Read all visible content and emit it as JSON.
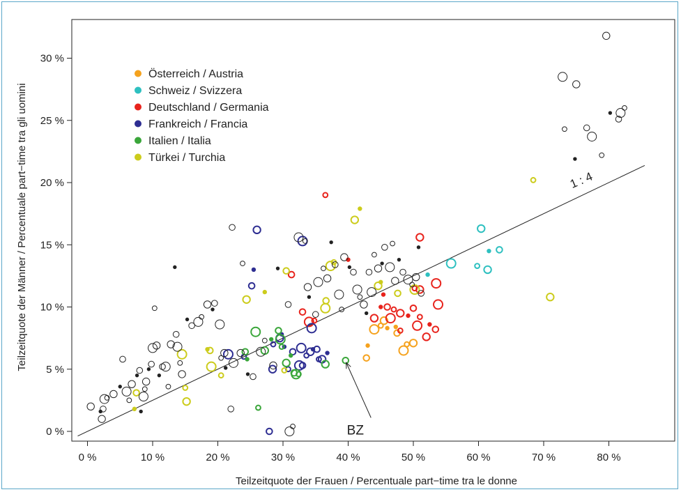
{
  "chart_data": {
    "type": "scatter",
    "xlabel": "Teilzeitquote der Frauen / Percentuale part−time tra le donne",
    "ylabel": "Teilzeitquote der Männer / Percentuale part−time tra gli uomini",
    "xlim": [
      -1.5,
      85.5
    ],
    "ylim": [
      -1,
      33
    ],
    "x_ticks": [
      0,
      10,
      20,
      30,
      40,
      50,
      60,
      70,
      80
    ],
    "y_ticks": [
      0,
      5,
      10,
      15,
      20,
      25,
      30
    ],
    "x_tick_labels": [
      "0 %",
      "10 %",
      "20 %",
      "30 %",
      "40 %",
      "50 %",
      "60 %",
      "70 %",
      "80 %"
    ],
    "y_tick_labels": [
      "0 %",
      "5 %",
      "10 %",
      "15 %",
      "20 %",
      "25 %",
      "30 %"
    ],
    "grid": false,
    "legend_position": "top-left",
    "reference_line": {
      "label": "1 : 4",
      "slope": 0.25,
      "intercept": 0
    },
    "annotation": {
      "label": "BZ",
      "x": 39.7,
      "y": 5.7
    },
    "series": [
      {
        "name": "Österreich / Austria",
        "color": "#f5a21e",
        "points": [
          [
            43,
            6.9
          ],
          [
            42.8,
            5.9
          ],
          [
            44,
            8.2
          ],
          [
            45,
            8.5
          ],
          [
            45.5,
            8.9
          ],
          [
            46,
            8.3
          ],
          [
            47.5,
            7.9
          ],
          [
            48.5,
            6.5
          ],
          [
            49,
            7
          ],
          [
            50,
            7.1
          ],
          [
            47.3,
            8.4
          ]
        ]
      },
      {
        "name": "Schweiz / Svizzera",
        "color": "#2ec0c0",
        "points": [
          [
            60.4,
            16.3
          ],
          [
            61.6,
            14.5
          ],
          [
            63.2,
            14.6
          ],
          [
            55.8,
            13.5
          ],
          [
            59.8,
            13.3
          ],
          [
            61.4,
            13
          ],
          [
            52.2,
            12.6
          ]
        ]
      },
      {
        "name": "Deutschland / Germania",
        "color": "#e8231c",
        "points": [
          [
            36.5,
            19
          ],
          [
            51,
            15.6
          ],
          [
            40,
            13.8
          ],
          [
            31.3,
            12.6
          ],
          [
            53.5,
            11.9
          ],
          [
            50.2,
            11.5
          ],
          [
            51,
            11.4
          ],
          [
            45.4,
            11
          ],
          [
            33,
            9.6
          ],
          [
            34,
            8.8
          ],
          [
            34.8,
            8.9
          ],
          [
            44,
            9.1
          ],
          [
            45,
            10
          ],
          [
            46,
            10
          ],
          [
            46.5,
            9.1
          ],
          [
            47,
            9.8
          ],
          [
            48,
            9.5
          ],
          [
            49.2,
            9.3
          ],
          [
            50,
            9.9
          ],
          [
            50.6,
            8.5
          ],
          [
            51,
            9.2
          ],
          [
            52,
            7.6
          ],
          [
            52.5,
            8.6
          ],
          [
            53.4,
            8.2
          ],
          [
            53.8,
            10.2
          ],
          [
            48,
            8.1
          ]
        ]
      },
      {
        "name": "Frankreich / Francia",
        "color": "#2e2e92",
        "points": [
          [
            21.6,
            6.2
          ],
          [
            24,
            6
          ],
          [
            26,
            16.2
          ],
          [
            25.5,
            13
          ],
          [
            25.2,
            11.7
          ],
          [
            33,
            15.3
          ],
          [
            28.5,
            7
          ],
          [
            29.5,
            7.5
          ],
          [
            30.2,
            6.8
          ],
          [
            31.5,
            6.4
          ],
          [
            32.8,
            6.7
          ],
          [
            33.6,
            6.1
          ],
          [
            34.2,
            6.4
          ],
          [
            34.6,
            6.6
          ],
          [
            35.2,
            6.6
          ],
          [
            34.4,
            8.3
          ],
          [
            35.5,
            5.8
          ],
          [
            36,
            5.8
          ],
          [
            36.8,
            6.3
          ],
          [
            33,
            5.3
          ],
          [
            32.5,
            5.3
          ],
          [
            30.8,
            5
          ],
          [
            28.4,
            5
          ],
          [
            29.8,
            7.8
          ],
          [
            27.9,
            0
          ]
        ]
      },
      {
        "name": "Italien / Italia",
        "color": "#3aa63a",
        "points": [
          [
            24.2,
            6.4
          ],
          [
            25.8,
            8
          ],
          [
            26.2,
            1.9
          ],
          [
            27.2,
            6.5
          ],
          [
            28.2,
            7.4
          ],
          [
            29.3,
            8.1
          ],
          [
            29.6,
            7.4
          ],
          [
            29.8,
            6.8
          ],
          [
            30.5,
            5.5
          ],
          [
            31.2,
            6.1
          ],
          [
            31.7,
            4.7
          ],
          [
            32,
            4.6
          ],
          [
            32.4,
            4.6
          ],
          [
            36.5,
            5.4
          ],
          [
            24.5,
            5.8
          ],
          [
            39.6,
            5.7
          ]
        ]
      },
      {
        "name": "Türkei / Turchia",
        "color": "#cccc1c",
        "points": [
          [
            7.2,
            1.8
          ],
          [
            7.5,
            3.1
          ],
          [
            14.5,
            6.2
          ],
          [
            15,
            3.5
          ],
          [
            15.2,
            2.4
          ],
          [
            18.4,
            6.6
          ],
          [
            18.8,
            6.5
          ],
          [
            19,
            5.2
          ],
          [
            20.5,
            4.5
          ],
          [
            24.4,
            10.6
          ],
          [
            27.2,
            11.2
          ],
          [
            30.5,
            12.9
          ],
          [
            37.3,
            13.3
          ],
          [
            37.8,
            13.6
          ],
          [
            41,
            17
          ],
          [
            41.8,
            17.9
          ],
          [
            36.6,
            10.5
          ],
          [
            36.5,
            9.9
          ],
          [
            30.2,
            4.9
          ],
          [
            44.6,
            11.7
          ],
          [
            45,
            12
          ],
          [
            47.6,
            11.1
          ],
          [
            50.2,
            11.4
          ],
          [
            68.4,
            20.2
          ],
          [
            71,
            10.8
          ]
        ]
      },
      {
        "name": "",
        "color": "#222222",
        "points": [
          [
            0.5,
            2
          ],
          [
            2,
            1.6
          ],
          [
            2.4,
            1.8
          ],
          [
            2.6,
            2.6
          ],
          [
            3,
            2.7
          ],
          [
            4,
            3
          ],
          [
            5,
            3.6
          ],
          [
            5.4,
            5.8
          ],
          [
            6,
            3.2
          ],
          [
            6.4,
            2.5
          ],
          [
            6.8,
            3.8
          ],
          [
            7.6,
            4.5
          ],
          [
            8,
            4.9
          ],
          [
            8.6,
            2.8
          ],
          [
            8.8,
            3.4
          ],
          [
            9,
            4
          ],
          [
            9.4,
            5
          ],
          [
            9.8,
            5.4
          ],
          [
            10,
            6.7
          ],
          [
            10.3,
            9.9
          ],
          [
            10.6,
            6.9
          ],
          [
            11,
            4.5
          ],
          [
            11.5,
            5.2
          ],
          [
            12,
            5.2
          ],
          [
            12.4,
            3.6
          ],
          [
            12.8,
            7
          ],
          [
            13.4,
            13.2
          ],
          [
            13.6,
            7.8
          ],
          [
            13.8,
            6.8
          ],
          [
            14.2,
            5.5
          ],
          [
            14.5,
            4.6
          ],
          [
            15.3,
            9
          ],
          [
            16,
            8.5
          ],
          [
            17,
            8.8
          ],
          [
            17.5,
            9.2
          ],
          [
            18.4,
            10.2
          ],
          [
            19.2,
            9.8
          ],
          [
            19.5,
            10.3
          ],
          [
            20.3,
            8.6
          ],
          [
            20.5,
            5.9
          ],
          [
            21,
            6.3
          ],
          [
            21.2,
            5.1
          ],
          [
            22.2,
            16.4
          ],
          [
            22.4,
            5.5
          ],
          [
            23.8,
            13.5
          ],
          [
            23.5,
            6.3
          ],
          [
            24.6,
            4.6
          ],
          [
            25.4,
            4.4
          ],
          [
            26.6,
            6.4
          ],
          [
            27.2,
            7.3
          ],
          [
            28.5,
            5.3
          ],
          [
            29.2,
            13.1
          ],
          [
            30.8,
            10.2
          ],
          [
            32.4,
            15.6
          ],
          [
            33.4,
            15.3
          ],
          [
            33.8,
            11.6
          ],
          [
            34,
            10.8
          ],
          [
            35,
            9.4
          ],
          [
            35.4,
            12
          ],
          [
            36.2,
            13.1
          ],
          [
            36.8,
            12.3
          ],
          [
            37.4,
            15.2
          ],
          [
            38,
            13.4
          ],
          [
            38.6,
            11
          ],
          [
            39,
            9.8
          ],
          [
            39.4,
            14
          ],
          [
            40.2,
            13.2
          ],
          [
            40.8,
            12.8
          ],
          [
            41.4,
            11.4
          ],
          [
            41.8,
            10.8
          ],
          [
            42.4,
            10.2
          ],
          [
            42.8,
            9.5
          ],
          [
            43.2,
            12.8
          ],
          [
            43.6,
            11.2
          ],
          [
            44,
            14.2
          ],
          [
            44.6,
            13.1
          ],
          [
            45.2,
            13.5
          ],
          [
            45.6,
            14.8
          ],
          [
            46.4,
            13.2
          ],
          [
            46.8,
            15.1
          ],
          [
            47.2,
            12.1
          ],
          [
            47.8,
            13.8
          ],
          [
            48.4,
            12.8
          ],
          [
            49.2,
            12.2
          ],
          [
            49.8,
            11.8
          ],
          [
            50.4,
            12.4
          ],
          [
            50.8,
            14.8
          ],
          [
            51.2,
            11.1
          ],
          [
            72.9,
            28.5
          ],
          [
            73.2,
            24.3
          ],
          [
            75,
            27.9
          ],
          [
            74.8,
            21.9
          ],
          [
            76.6,
            24.4
          ],
          [
            77.4,
            23.7
          ],
          [
            78.9,
            22.2
          ],
          [
            79.6,
            31.8
          ],
          [
            80.2,
            25.6
          ],
          [
            81.5,
            25.1
          ],
          [
            81.8,
            25.6
          ],
          [
            82.4,
            26
          ],
          [
            2.2,
            1
          ],
          [
            8.2,
            1.6
          ],
          [
            22,
            1.8
          ],
          [
            31,
            0
          ],
          [
            31.5,
            0.4
          ]
        ]
      }
    ]
  }
}
